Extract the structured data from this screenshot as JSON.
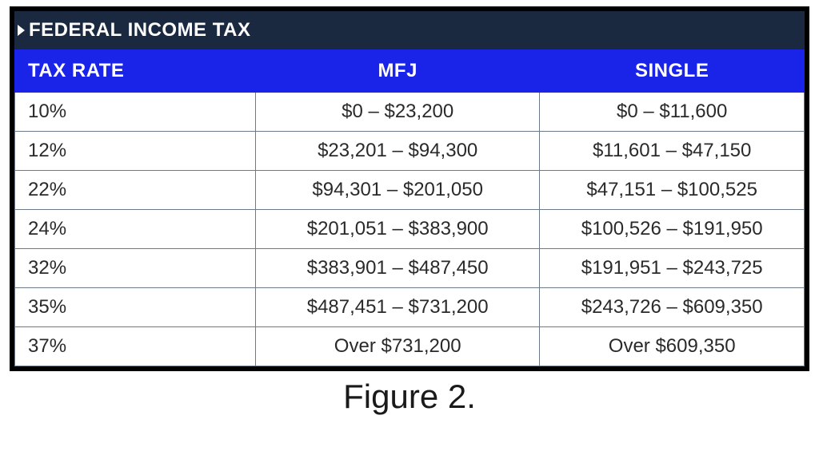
{
  "table": {
    "title": "FEDERAL INCOME TAX",
    "columns": [
      "TAX RATE",
      "MFJ",
      "SINGLE"
    ],
    "rows": [
      {
        "rate": "10%",
        "mfj": "$0 – $23,200",
        "single": "$0 – $11,600"
      },
      {
        "rate": "12%",
        "mfj": "$23,201 – $94,300",
        "single": "$11,601 – $47,150"
      },
      {
        "rate": "22%",
        "mfj": "$94,301 – $201,050",
        "single": "$47,151 – $100,525"
      },
      {
        "rate": "24%",
        "mfj": "$201,051 – $383,900",
        "single": "$100,526 – $191,950"
      },
      {
        "rate": "32%",
        "mfj": "$383,901 – $487,450",
        "single": "$191,951 – $243,725"
      },
      {
        "rate": "35%",
        "mfj": "$487,451 – $731,200",
        "single": "$243,726 – $609,350"
      },
      {
        "rate": "37%",
        "mfj": "Over $731,200",
        "single": "Over $609,350"
      }
    ],
    "colors": {
      "outer_border": "#000000",
      "title_bg": "#1a2940",
      "title_text": "#ffffff",
      "header_bg": "#1a24e8",
      "header_text": "#ffffff",
      "cell_border": "#6c7a89",
      "cell_text": "#2a2a2a",
      "background": "#ffffff"
    },
    "column_widths_pct": [
      30.5,
      36,
      33.5
    ],
    "font_sizes_pt": {
      "title": 18,
      "header": 18,
      "cell": 18,
      "caption": 32
    }
  },
  "caption": "Figure 2."
}
